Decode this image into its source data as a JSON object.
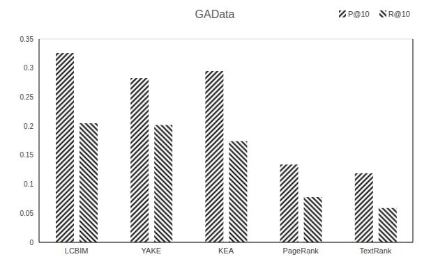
{
  "chart_data": {
    "type": "bar",
    "title": "GAData",
    "categories": [
      "LCBIM",
      "YAKE",
      "KEA",
      "PageRank",
      "TextRank"
    ],
    "series": [
      {
        "name": "P@10",
        "color": "#000000",
        "values": [
          0.326,
          0.283,
          0.295,
          0.134,
          0.119
        ]
      },
      {
        "name": "R@10",
        "color": "#000000",
        "values": [
          0.205,
          0.202,
          0.174,
          0.078,
          0.059
        ]
      }
    ],
    "ylim": [
      0,
      0.35
    ],
    "yticks": [
      0,
      0.05,
      0.1,
      0.15,
      0.2,
      0.25,
      0.3,
      0.35
    ],
    "grid": true,
    "legend": "upper right"
  }
}
